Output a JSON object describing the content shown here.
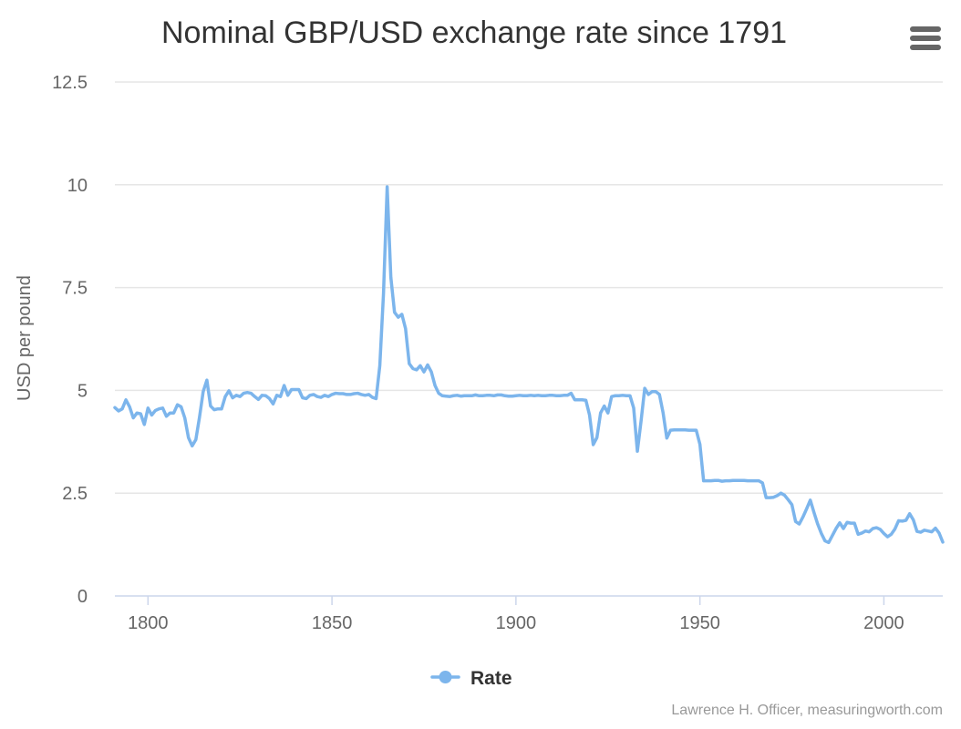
{
  "chart_data": {
    "type": "line",
    "title": "Nominal GBP/USD exchange rate since 1791",
    "xlabel": "",
    "ylabel": "USD per pound",
    "xlim": [
      1791,
      2016
    ],
    "ylim": [
      0,
      12.5
    ],
    "x_ticks": [
      1800,
      1850,
      1900,
      1950,
      2000
    ],
    "y_ticks": [
      0,
      2.5,
      5,
      7.5,
      10,
      12.5
    ],
    "y_tick_labels": [
      "0",
      "2.5",
      "5",
      "7.5",
      "10",
      "12.5"
    ],
    "grid": true,
    "legend": "bottom-center",
    "color": "#7cb5ec",
    "series": [
      {
        "name": "Rate",
        "points": [
          [
            1791,
            4.58
          ],
          [
            1792,
            4.5
          ],
          [
            1793,
            4.55
          ],
          [
            1794,
            4.77
          ],
          [
            1795,
            4.6
          ],
          [
            1796,
            4.33
          ],
          [
            1797,
            4.45
          ],
          [
            1798,
            4.43
          ],
          [
            1799,
            4.17
          ],
          [
            1800,
            4.57
          ],
          [
            1801,
            4.4
          ],
          [
            1802,
            4.51
          ],
          [
            1803,
            4.55
          ],
          [
            1804,
            4.57
          ],
          [
            1805,
            4.37
          ],
          [
            1806,
            4.45
          ],
          [
            1807,
            4.45
          ],
          [
            1808,
            4.65
          ],
          [
            1809,
            4.6
          ],
          [
            1810,
            4.33
          ],
          [
            1811,
            3.85
          ],
          [
            1812,
            3.65
          ],
          [
            1813,
            3.8
          ],
          [
            1814,
            4.35
          ],
          [
            1815,
            4.97
          ],
          [
            1816,
            5.25
          ],
          [
            1817,
            4.62
          ],
          [
            1818,
            4.53
          ],
          [
            1819,
            4.55
          ],
          [
            1820,
            4.55
          ],
          [
            1821,
            4.85
          ],
          [
            1822,
            4.99
          ],
          [
            1823,
            4.82
          ],
          [
            1824,
            4.88
          ],
          [
            1825,
            4.85
          ],
          [
            1826,
            4.93
          ],
          [
            1827,
            4.95
          ],
          [
            1828,
            4.93
          ],
          [
            1829,
            4.85
          ],
          [
            1830,
            4.78
          ],
          [
            1831,
            4.88
          ],
          [
            1832,
            4.87
          ],
          [
            1833,
            4.8
          ],
          [
            1834,
            4.67
          ],
          [
            1835,
            4.88
          ],
          [
            1836,
            4.85
          ],
          [
            1837,
            5.12
          ],
          [
            1838,
            4.88
          ],
          [
            1839,
            5.02
          ],
          [
            1840,
            5.02
          ],
          [
            1841,
            5.02
          ],
          [
            1842,
            4.82
          ],
          [
            1843,
            4.8
          ],
          [
            1844,
            4.88
          ],
          [
            1845,
            4.9
          ],
          [
            1846,
            4.85
          ],
          [
            1847,
            4.83
          ],
          [
            1848,
            4.88
          ],
          [
            1849,
            4.85
          ],
          [
            1850,
            4.9
          ],
          [
            1851,
            4.93
          ],
          [
            1852,
            4.92
          ],
          [
            1853,
            4.92
          ],
          [
            1854,
            4.9
          ],
          [
            1855,
            4.9
          ],
          [
            1856,
            4.92
          ],
          [
            1857,
            4.93
          ],
          [
            1858,
            4.9
          ],
          [
            1859,
            4.88
          ],
          [
            1860,
            4.9
          ],
          [
            1861,
            4.83
          ],
          [
            1862,
            4.8
          ],
          [
            1863,
            5.6
          ],
          [
            1864,
            7.35
          ],
          [
            1865,
            9.95
          ],
          [
            1866,
            7.75
          ],
          [
            1867,
            6.9
          ],
          [
            1868,
            6.78
          ],
          [
            1869,
            6.85
          ],
          [
            1870,
            6.5
          ],
          [
            1871,
            5.65
          ],
          [
            1872,
            5.53
          ],
          [
            1873,
            5.5
          ],
          [
            1874,
            5.6
          ],
          [
            1875,
            5.45
          ],
          [
            1876,
            5.62
          ],
          [
            1877,
            5.45
          ],
          [
            1878,
            5.12
          ],
          [
            1879,
            4.93
          ],
          [
            1880,
            4.87
          ],
          [
            1881,
            4.86
          ],
          [
            1882,
            4.85
          ],
          [
            1883,
            4.87
          ],
          [
            1884,
            4.88
          ],
          [
            1885,
            4.86
          ],
          [
            1886,
            4.87
          ],
          [
            1887,
            4.87
          ],
          [
            1888,
            4.87
          ],
          [
            1889,
            4.89
          ],
          [
            1890,
            4.87
          ],
          [
            1891,
            4.87
          ],
          [
            1892,
            4.88
          ],
          [
            1893,
            4.88
          ],
          [
            1894,
            4.87
          ],
          [
            1895,
            4.89
          ],
          [
            1896,
            4.89
          ],
          [
            1897,
            4.87
          ],
          [
            1898,
            4.86
          ],
          [
            1899,
            4.86
          ],
          [
            1900,
            4.87
          ],
          [
            1901,
            4.88
          ],
          [
            1902,
            4.87
          ],
          [
            1903,
            4.87
          ],
          [
            1904,
            4.88
          ],
          [
            1905,
            4.87
          ],
          [
            1906,
            4.88
          ],
          [
            1907,
            4.87
          ],
          [
            1908,
            4.87
          ],
          [
            1909,
            4.88
          ],
          [
            1910,
            4.88
          ],
          [
            1911,
            4.87
          ],
          [
            1912,
            4.87
          ],
          [
            1913,
            4.88
          ],
          [
            1914,
            4.88
          ],
          [
            1915,
            4.93
          ],
          [
            1916,
            4.77
          ],
          [
            1917,
            4.77
          ],
          [
            1918,
            4.77
          ],
          [
            1919,
            4.76
          ],
          [
            1920,
            4.4
          ],
          [
            1921,
            3.68
          ],
          [
            1922,
            3.85
          ],
          [
            1923,
            4.45
          ],
          [
            1924,
            4.62
          ],
          [
            1925,
            4.45
          ],
          [
            1926,
            4.85
          ],
          [
            1927,
            4.87
          ],
          [
            1928,
            4.87
          ],
          [
            1929,
            4.88
          ],
          [
            1930,
            4.87
          ],
          [
            1931,
            4.87
          ],
          [
            1932,
            4.57
          ],
          [
            1933,
            3.52
          ],
          [
            1934,
            4.25
          ],
          [
            1935,
            5.05
          ],
          [
            1936,
            4.9
          ],
          [
            1937,
            4.97
          ],
          [
            1938,
            4.97
          ],
          [
            1939,
            4.9
          ],
          [
            1940,
            4.45
          ],
          [
            1941,
            3.84
          ],
          [
            1942,
            4.03
          ],
          [
            1943,
            4.04
          ],
          [
            1944,
            4.04
          ],
          [
            1945,
            4.04
          ],
          [
            1946,
            4.04
          ],
          [
            1947,
            4.03
          ],
          [
            1948,
            4.03
          ],
          [
            1949,
            4.03
          ],
          [
            1950,
            3.69
          ],
          [
            1951,
            2.8
          ],
          [
            1952,
            2.8
          ],
          [
            1953,
            2.8
          ],
          [
            1954,
            2.81
          ],
          [
            1955,
            2.81
          ],
          [
            1956,
            2.79
          ],
          [
            1957,
            2.8
          ],
          [
            1958,
            2.8
          ],
          [
            1959,
            2.81
          ],
          [
            1960,
            2.81
          ],
          [
            1961,
            2.81
          ],
          [
            1962,
            2.81
          ],
          [
            1963,
            2.8
          ],
          [
            1964,
            2.8
          ],
          [
            1965,
            2.8
          ],
          [
            1966,
            2.8
          ],
          [
            1967,
            2.75
          ],
          [
            1968,
            2.39
          ],
          [
            1969,
            2.39
          ],
          [
            1970,
            2.4
          ],
          [
            1971,
            2.44
          ],
          [
            1972,
            2.5
          ],
          [
            1973,
            2.45
          ],
          [
            1974,
            2.34
          ],
          [
            1975,
            2.22
          ],
          [
            1976,
            1.81
          ],
          [
            1977,
            1.75
          ],
          [
            1978,
            1.92
          ],
          [
            1979,
            2.12
          ],
          [
            1980,
            2.33
          ],
          [
            1981,
            2.03
          ],
          [
            1982,
            1.75
          ],
          [
            1983,
            1.52
          ],
          [
            1984,
            1.34
          ],
          [
            1985,
            1.3
          ],
          [
            1986,
            1.47
          ],
          [
            1987,
            1.64
          ],
          [
            1988,
            1.78
          ],
          [
            1989,
            1.64
          ],
          [
            1990,
            1.79
          ],
          [
            1991,
            1.77
          ],
          [
            1992,
            1.77
          ],
          [
            1993,
            1.5
          ],
          [
            1994,
            1.53
          ],
          [
            1995,
            1.58
          ],
          [
            1996,
            1.56
          ],
          [
            1997,
            1.64
          ],
          [
            1998,
            1.66
          ],
          [
            1999,
            1.62
          ],
          [
            2000,
            1.52
          ],
          [
            2001,
            1.44
          ],
          [
            2002,
            1.5
          ],
          [
            2003,
            1.63
          ],
          [
            2004,
            1.83
          ],
          [
            2005,
            1.82
          ],
          [
            2006,
            1.84
          ],
          [
            2007,
            2.0
          ],
          [
            2008,
            1.85
          ],
          [
            2009,
            1.57
          ],
          [
            2010,
            1.55
          ],
          [
            2011,
            1.6
          ],
          [
            2012,
            1.58
          ],
          [
            2013,
            1.56
          ],
          [
            2014,
            1.65
          ],
          [
            2015,
            1.53
          ],
          [
            2016,
            1.31
          ]
        ]
      }
    ]
  },
  "credits": "Lawrence H. Officer, measuringworth.com",
  "menu": {
    "icon": "hamburger-menu-icon"
  }
}
